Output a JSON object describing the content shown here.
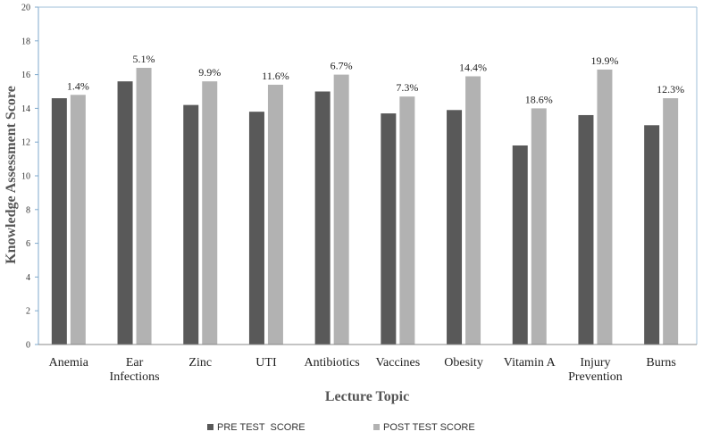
{
  "chart_data": {
    "type": "bar",
    "categories": [
      [
        "Anemia"
      ],
      [
        "Ear",
        "Infections"
      ],
      [
        "Zinc"
      ],
      [
        "UTI"
      ],
      [
        "Antibiotics"
      ],
      [
        "Vaccines"
      ],
      [
        "Obesity"
      ],
      [
        "Vitamin A"
      ],
      [
        "Injury",
        "Prevention"
      ],
      [
        "Burns"
      ]
    ],
    "series": [
      {
        "name": "PRE TEST  SCORE",
        "color": "#595959",
        "values": [
          14.6,
          15.6,
          14.2,
          13.8,
          15.0,
          13.7,
          13.9,
          11.8,
          13.6,
          13.0
        ]
      },
      {
        "name": "POST TEST SCORE",
        "color": "#b2b2b2",
        "values": [
          14.8,
          16.4,
          15.6,
          15.4,
          16.0,
          14.7,
          15.9,
          14.0,
          16.3,
          14.6
        ]
      }
    ],
    "data_labels": [
      "1.4%",
      "5.1%",
      "9.9%",
      "11.6%",
      "6.7%",
      "7.3%",
      "14.4%",
      "18.6%",
      "19.9%",
      "12.3%"
    ],
    "xlabel": "Lecture Topic",
    "ylabel": "Knowledge Assessment Score",
    "ylim": [
      0,
      20
    ],
    "yticks": [
      "0",
      "2",
      "4",
      "6",
      "8",
      "10",
      "12",
      "14",
      "16",
      "18",
      "20"
    ],
    "grid": false,
    "legend_position": "bottom"
  }
}
